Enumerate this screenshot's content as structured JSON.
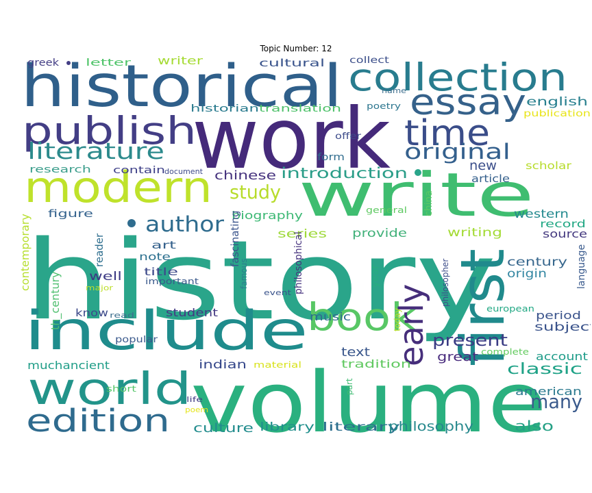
{
  "title": "Topic Number: 12",
  "words": [
    {
      "text": "history",
      "color": "#2aa58a"
    },
    {
      "text": "work",
      "color": "#452a7a"
    },
    {
      "text": "volume",
      "color": "#2ab07f"
    },
    {
      "text": "historical",
      "color": "#2f5f8a"
    },
    {
      "text": "write",
      "color": "#3fbd70"
    },
    {
      "text": "first",
      "color": "#208a8c"
    },
    {
      "text": "include",
      "color": "#1f8c8c"
    },
    {
      "text": "collection",
      "color": "#287c8e"
    },
    {
      "text": "modern",
      "color": "#bfe22b"
    },
    {
      "text": "publish",
      "color": "#433e85"
    },
    {
      "text": "world",
      "color": "#22948a"
    },
    {
      "text": "book",
      "color": "#58c765"
    },
    {
      "text": "essay",
      "color": "#35618a"
    },
    {
      "text": "time",
      "color": "#3a4d89"
    },
    {
      "text": "edition",
      "color": "#2f6b8e"
    },
    {
      "text": "early",
      "color": "#462e7b"
    },
    {
      "text": "literature",
      "color": "#2c8a8c"
    },
    {
      "text": "author",
      "color": "#2f6c8e"
    },
    {
      "text": "original",
      "color": "#34608d"
    },
    {
      "text": "study",
      "color": "#b7dc2b"
    },
    {
      "text": "present",
      "color": "#3a3c84"
    },
    {
      "text": "many",
      "color": "#3a5a8c"
    },
    {
      "text": "introduction",
      "color": "#2a9d88"
    },
    {
      "text": "classic",
      "color": "#1fa287"
    },
    {
      "text": "chinese",
      "color": "#46337e"
    },
    {
      "text": "new",
      "color": "#3b4e8a"
    },
    {
      "text": "biography",
      "color": "#3cb874"
    },
    {
      "text": "great",
      "color": "#4a2d7e"
    },
    {
      "text": "culture",
      "color": "#228c8d"
    },
    {
      "text": "library",
      "color": "#208f8c"
    },
    {
      "text": "literary",
      "color": "#2d6f8e"
    },
    {
      "text": "philosophy",
      "color": "#27898d"
    },
    {
      "text": "also",
      "color": "#25a085"
    },
    {
      "text": "american",
      "color": "#2a798e"
    },
    {
      "text": "text",
      "color": "#39568b"
    },
    {
      "text": "century",
      "color": "#37678d"
    },
    {
      "text": "origin",
      "color": "#3487a2"
    },
    {
      "text": "series",
      "color": "#9ed93a"
    },
    {
      "text": "provide",
      "color": "#42b17a"
    },
    {
      "text": "writing",
      "color": "#a4db36"
    },
    {
      "text": "scholar",
      "color": "#b7dc2b"
    },
    {
      "text": "english",
      "color": "#277f8e"
    },
    {
      "text": "article",
      "color": "#35608c"
    },
    {
      "text": "western",
      "color": "#23898e"
    },
    {
      "text": "record",
      "color": "#22a884"
    },
    {
      "text": "source",
      "color": "#44397f"
    },
    {
      "text": "period",
      "color": "#3a538b"
    },
    {
      "text": "subject",
      "color": "#3a538b"
    },
    {
      "text": "account",
      "color": "#1e9c89"
    },
    {
      "text": "tradition",
      "color": "#61c961"
    },
    {
      "text": "indian",
      "color": "#35478a"
    },
    {
      "text": "muchancient",
      "color": "#1f9d87"
    },
    {
      "text": "music",
      "color": "#2f6c8e"
    },
    {
      "text": "student",
      "color": "#443983"
    },
    {
      "text": "know",
      "color": "#3d4a8a"
    },
    {
      "text": "contemporary",
      "color": "#b6de2c"
    },
    {
      "text": "th_century",
      "color": "#4fbf6f"
    },
    {
      "text": "reader",
      "color": "#2e6e8e"
    },
    {
      "text": "figure",
      "color": "#34628d"
    },
    {
      "text": "research",
      "color": "#3c9e8c"
    },
    {
      "text": "contain",
      "color": "#3c3e87"
    },
    {
      "text": "document",
      "color": "#3e4a8a"
    },
    {
      "text": "form",
      "color": "#2f6c8e"
    },
    {
      "text": "art",
      "color": "#35618c"
    },
    {
      "text": "note",
      "color": "#2b6f8e"
    },
    {
      "text": "well",
      "color": "#3d3a84"
    },
    {
      "text": "title",
      "color": "#3d4a8a"
    },
    {
      "text": "important",
      "color": "#3a598c"
    },
    {
      "text": "major",
      "color": "#bdde2a"
    },
    {
      "text": "read",
      "color": "#3e6f8e"
    },
    {
      "text": "popular",
      "color": "#3a598c"
    },
    {
      "text": "short",
      "color": "#54c568"
    },
    {
      "text": "life",
      "color": "#433e85"
    },
    {
      "text": "poem",
      "color": "#e4e41a"
    },
    {
      "text": "material",
      "color": "#d8e21c"
    },
    {
      "text": "part",
      "color": "#3fbc73"
    },
    {
      "text": "today",
      "color": "#b8de29"
    },
    {
      "text": "event",
      "color": "#3a538b"
    },
    {
      "text": "famous",
      "color": "#2a7d8e"
    },
    {
      "text": "philosophical",
      "color": "#46337e"
    },
    {
      "text": "fascinating",
      "color": "#3a548c"
    },
    {
      "text": "year",
      "color": "#27ad80"
    },
    {
      "text": "philosopher",
      "color": "#3d4d8a"
    },
    {
      "text": "european",
      "color": "#22a884"
    },
    {
      "text": "complete",
      "color": "#63cb5f"
    },
    {
      "text": "language",
      "color": "#38598c"
    },
    {
      "text": "china",
      "color": "#5ac864"
    },
    {
      "text": "general",
      "color": "#5ec962"
    },
    {
      "text": "offer",
      "color": "#3c4b8a"
    },
    {
      "text": "collect",
      "color": "#3a4d89"
    },
    {
      "text": "name",
      "color": "#3e6f8e"
    },
    {
      "text": "poetry",
      "color": "#2b758e"
    },
    {
      "text": "publication",
      "color": "#e8e419"
    },
    {
      "text": "historian",
      "color": "#2a7b8e"
    },
    {
      "text": "translation",
      "color": "#4fc16b"
    },
    {
      "text": "cultural",
      "color": "#3a548c"
    },
    {
      "text": "writer",
      "color": "#a6db35"
    },
    {
      "text": "letter",
      "color": "#50c46a"
    },
    {
      "text": "greek",
      "color": "#433e85"
    }
  ]
}
